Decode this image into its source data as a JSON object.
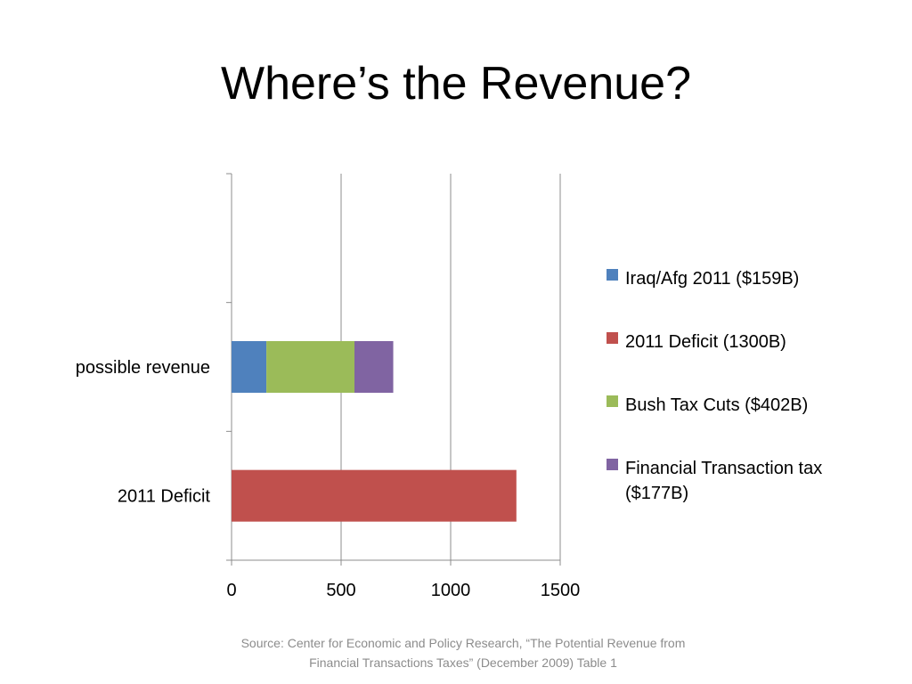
{
  "slide": {
    "title": "Where’s the Revenue?",
    "source_line1": "Source:  Center for Economic and Policy Research, “The Potential Revenue from",
    "source_line2": "Financial Transactions Taxes” (December 2009) Table 1"
  },
  "chart_data": {
    "type": "bar",
    "orientation": "horizontal",
    "stacked": true,
    "title": "",
    "xlabel": "",
    "ylabel": "",
    "categories": [
      "2011 Deficit",
      "possible revenue"
    ],
    "xlim": [
      0,
      1500
    ],
    "xticks": [
      0,
      500,
      1000,
      1500
    ],
    "grid": true,
    "legend_position": "right",
    "legend_order": [
      0,
      1,
      2,
      3
    ],
    "series": [
      {
        "name": "Iraq/Afg 2011 ($159B)",
        "color": "#4f81bd",
        "values": [
          0,
          159
        ]
      },
      {
        "name": "2011 Deficit (1300B)",
        "color": "#c0504d",
        "values": [
          1300,
          0
        ]
      },
      {
        "name": "Bush Tax Cuts ($402B)",
        "color": "#9bbb59",
        "values": [
          0,
          402
        ]
      },
      {
        "name": "Financial Transaction tax ($177B)",
        "color": "#8064a2",
        "values": [
          0,
          177
        ]
      }
    ]
  }
}
